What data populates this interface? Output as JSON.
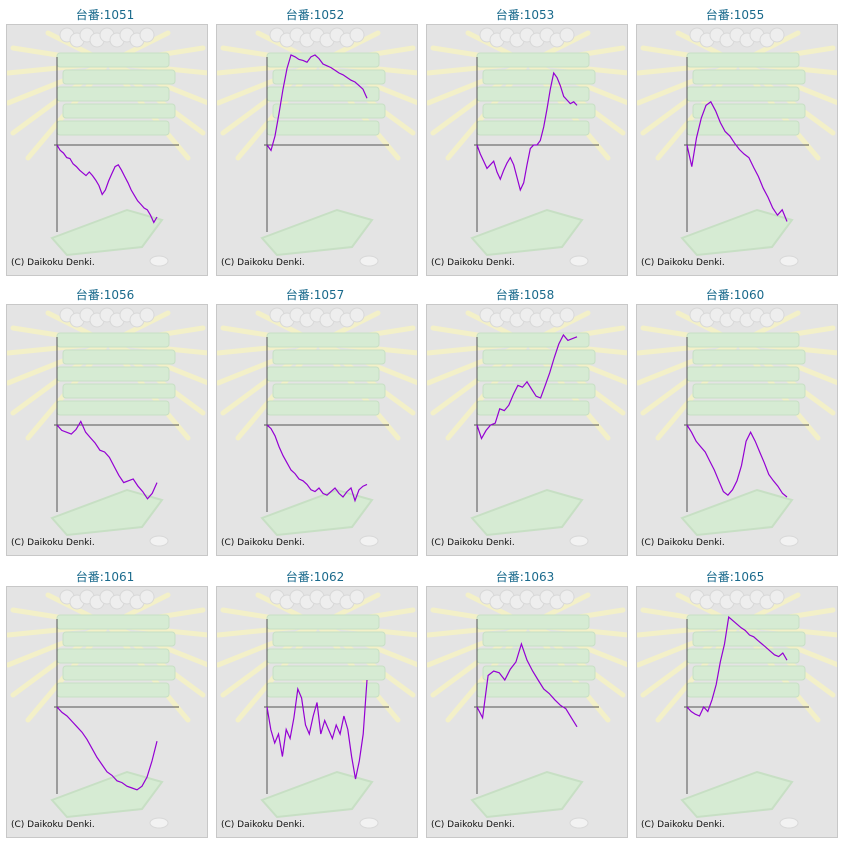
{
  "page": {
    "credit_text": "(C) Daikoku Denki."
  },
  "colors": {
    "title": "#1a6a8c",
    "line": "#9400d3",
    "axis": "#555555",
    "panel_bg": "#e4e4e4"
  },
  "chart_data": [
    {
      "type": "line",
      "title": "台番:1051",
      "values": [
        0.0,
        -0.06,
        -0.09,
        -0.14,
        -0.15,
        -0.21,
        -0.24,
        -0.28,
        -0.31,
        -0.34,
        -0.3,
        -0.34,
        -0.39,
        -0.45,
        -0.55,
        -0.5,
        -0.4,
        -0.32,
        -0.24,
        -0.22,
        -0.28,
        -0.35,
        -0.42,
        -0.5,
        -0.56,
        -0.62,
        -0.66,
        -0.7,
        -0.72,
        -0.78,
        -0.86,
        -0.8
      ]
    },
    {
      "type": "line",
      "title": "台番:1052",
      "values": [
        0.0,
        -0.06,
        0.1,
        0.35,
        0.62,
        0.85,
        1.0,
        0.98,
        0.95,
        0.94,
        0.92,
        0.98,
        1.0,
        0.96,
        0.9,
        0.88,
        0.86,
        0.83,
        0.8,
        0.78,
        0.75,
        0.72,
        0.7,
        0.66,
        0.62,
        0.52
      ]
    },
    {
      "type": "line",
      "title": "台番:1053",
      "values": [
        0.0,
        -0.1,
        -0.18,
        -0.26,
        -0.22,
        -0.18,
        -0.3,
        -0.38,
        -0.28,
        -0.2,
        -0.14,
        -0.22,
        -0.36,
        -0.5,
        -0.42,
        -0.22,
        -0.04,
        0.0,
        0.0,
        0.05,
        0.2,
        0.4,
        0.62,
        0.8,
        0.75,
        0.66,
        0.54,
        0.5,
        0.46,
        0.48,
        0.44
      ]
    },
    {
      "type": "line",
      "title": "台番:1055",
      "values": [
        0.0,
        -0.24,
        0.08,
        0.3,
        0.44,
        0.48,
        0.38,
        0.25,
        0.15,
        0.1,
        0.02,
        -0.05,
        -0.1,
        -0.14,
        -0.25,
        -0.35,
        -0.48,
        -0.58,
        -0.7,
        -0.78,
        -0.72,
        -0.85
      ]
    },
    {
      "type": "line",
      "title": "台番:1056",
      "values": [
        0.0,
        -0.06,
        -0.08,
        -0.1,
        -0.05,
        0.04,
        -0.08,
        -0.14,
        -0.2,
        -0.28,
        -0.3,
        -0.36,
        -0.46,
        -0.56,
        -0.64,
        -0.62,
        -0.6,
        -0.68,
        -0.74,
        -0.82,
        -0.76,
        -0.64
      ]
    },
    {
      "type": "line",
      "title": "台番:1057",
      "values": [
        0.0,
        -0.04,
        -0.12,
        -0.24,
        -0.34,
        -0.42,
        -0.5,
        -0.54,
        -0.6,
        -0.62,
        -0.66,
        -0.72,
        -0.74,
        -0.7,
        -0.76,
        -0.78,
        -0.74,
        -0.7,
        -0.76,
        -0.8,
        -0.74,
        -0.7,
        -0.84,
        -0.72,
        -0.68,
        -0.66
      ]
    },
    {
      "type": "line",
      "title": "台番:1058",
      "values": [
        0.0,
        -0.15,
        -0.06,
        0.0,
        0.02,
        0.18,
        0.16,
        0.22,
        0.34,
        0.44,
        0.42,
        0.48,
        0.4,
        0.32,
        0.3,
        0.44,
        0.58,
        0.75,
        0.9,
        1.0,
        0.94,
        0.96,
        0.98
      ]
    },
    {
      "type": "line",
      "title": "台番:1060",
      "values": [
        0.0,
        -0.08,
        -0.18,
        -0.24,
        -0.3,
        -0.4,
        -0.5,
        -0.62,
        -0.74,
        -0.78,
        -0.72,
        -0.62,
        -0.45,
        -0.18,
        -0.08,
        -0.18,
        -0.3,
        -0.42,
        -0.55,
        -0.62,
        -0.68,
        -0.76,
        -0.8
      ]
    },
    {
      "type": "line",
      "title": "台番:1061",
      "values": [
        0.0,
        -0.06,
        -0.1,
        -0.16,
        -0.22,
        -0.28,
        -0.36,
        -0.46,
        -0.56,
        -0.64,
        -0.72,
        -0.76,
        -0.82,
        -0.84,
        -0.88,
        -0.9,
        -0.92,
        -0.88,
        -0.78,
        -0.6,
        -0.38
      ]
    },
    {
      "type": "line",
      "title": "台番:1062",
      "values": [
        0.0,
        -0.25,
        -0.4,
        -0.3,
        -0.55,
        -0.25,
        -0.35,
        -0.12,
        0.2,
        0.1,
        -0.2,
        -0.3,
        -0.1,
        0.05,
        -0.3,
        -0.15,
        -0.25,
        -0.35,
        -0.2,
        -0.3,
        -0.1,
        -0.25,
        -0.55,
        -0.8,
        -0.6,
        -0.3,
        0.3
      ]
    },
    {
      "type": "line",
      "title": "台番:1063",
      "values": [
        0.0,
        -0.12,
        0.35,
        0.4,
        0.38,
        0.3,
        0.42,
        0.5,
        0.7,
        0.52,
        0.4,
        0.3,
        0.2,
        0.15,
        0.08,
        0.02,
        -0.02,
        -0.12,
        -0.22
      ]
    },
    {
      "type": "line",
      "title": "台番:1065",
      "values": [
        0.0,
        -0.05,
        -0.08,
        -0.1,
        0.0,
        -0.05,
        0.08,
        0.25,
        0.5,
        0.7,
        1.0,
        0.96,
        0.92,
        0.88,
        0.85,
        0.8,
        0.78,
        0.74,
        0.7,
        0.66,
        0.62,
        0.58,
        0.56,
        0.6,
        0.52
      ]
    }
  ]
}
